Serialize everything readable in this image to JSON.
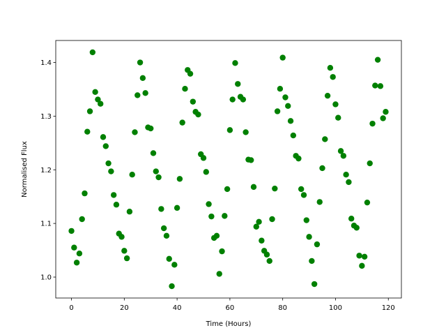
{
  "chart_data": {
    "type": "scatter",
    "xlabel": "Time (Hours)",
    "ylabel": "Normalised Flux",
    "color": "#008000",
    "x": [
      0,
      1,
      2,
      3,
      4,
      5,
      6,
      7,
      8,
      9,
      10,
      11,
      12,
      13,
      14,
      15,
      16,
      17,
      18,
      19,
      20,
      21,
      22,
      23,
      24,
      25,
      26,
      27,
      28,
      29,
      30,
      31,
      32,
      33,
      34,
      35,
      36,
      37,
      38,
      39,
      40,
      41,
      42,
      43,
      44,
      45,
      46,
      47,
      48,
      49,
      50,
      51,
      52,
      53,
      54,
      55,
      56,
      57,
      58,
      59,
      60,
      61,
      62,
      63,
      64,
      65,
      66,
      67,
      68,
      69,
      70,
      71,
      72,
      73,
      74,
      75,
      76,
      77,
      78,
      79,
      80,
      81,
      82,
      83,
      84,
      85,
      86,
      87,
      88,
      89,
      90,
      91,
      92,
      93,
      94,
      95,
      96,
      97,
      98,
      99,
      100,
      101,
      102,
      103,
      104,
      105,
      106,
      107,
      108,
      109,
      110,
      111,
      112,
      113,
      114,
      115,
      116,
      117,
      118,
      119
    ],
    "values": [
      1.086,
      1.055,
      1.027,
      1.044,
      1.108,
      1.156,
      1.271,
      1.309,
      1.419,
      1.345,
      1.331,
      1.323,
      1.261,
      1.244,
      1.212,
      1.197,
      1.153,
      1.135,
      1.081,
      1.075,
      1.049,
      1.035,
      1.122,
      1.191,
      1.27,
      1.339,
      1.4,
      1.371,
      1.343,
      1.279,
      1.277,
      1.231,
      1.197,
      1.186,
      1.127,
      1.091,
      1.077,
      1.034,
      0.983,
      1.023,
      1.129,
      1.183,
      1.288,
      1.351,
      1.386,
      1.379,
      1.327,
      1.308,
      1.303,
      1.229,
      1.222,
      1.196,
      1.136,
      1.113,
      1.073,
      1.077,
      1.006,
      1.048,
      1.114,
      1.164,
      1.274,
      1.331,
      1.399,
      1.36,
      1.336,
      1.331,
      1.27,
      1.219,
      1.218,
      1.168,
      1.094,
      1.103,
      1.068,
      1.049,
      1.042,
      1.03,
      1.108,
      1.165,
      1.309,
      1.351,
      1.409,
      1.335,
      1.319,
      1.291,
      1.264,
      1.226,
      1.221,
      1.164,
      1.153,
      1.106,
      1.075,
      1.03,
      0.987,
      1.061,
      1.14,
      1.203,
      1.257,
      1.338,
      1.39,
      1.373,
      1.322,
      1.297,
      1.235,
      1.226,
      1.191,
      1.177,
      1.109,
      1.096,
      1.092,
      1.04,
      1.021,
      1.038,
      1.139,
      1.212,
      1.286,
      1.357,
      1.405,
      1.356,
      1.296,
      1.308
    ],
    "xlim": [
      -5.95,
      124.95
    ],
    "xticks": [
      0,
      20,
      40,
      60,
      80,
      100,
      120
    ],
    "ylim": [
      0.961,
      1.441
    ],
    "yticks": [
      {
        "value": 1.0,
        "label": "1.0"
      },
      1.1,
      1.2,
      1.3,
      1.4
    ]
  }
}
